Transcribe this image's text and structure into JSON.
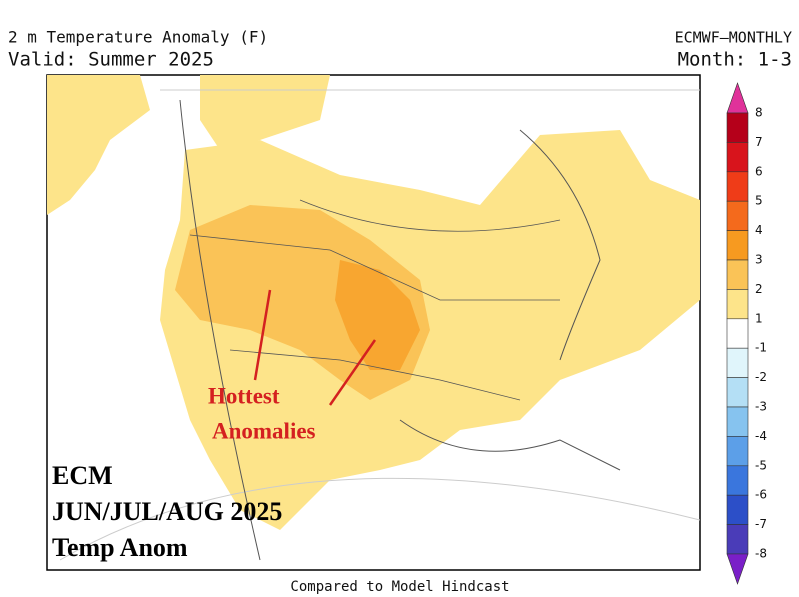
{
  "header": {
    "title": "2 m Temperature Anomaly (F)",
    "valid": "Valid: Summer 2025",
    "model": "ECMWF—MONTHLY",
    "month": "Month: 1-3"
  },
  "annotations": {
    "hottest_line1": "Hottest",
    "hottest_line2": "Anomalies",
    "ecm": "ECM",
    "period": "JUN/JUL/AUG 2025",
    "temp": "Temp Anom"
  },
  "footer": "Compared to Model Hindcast",
  "colorbar": {
    "labels": [
      8,
      7,
      6,
      5,
      4,
      3,
      2,
      1,
      -1,
      -2,
      -3,
      -4,
      -5,
      -6,
      -7,
      -8
    ],
    "colors": [
      "#e0329a",
      "#b5001a",
      "#d8141c",
      "#ef3c18",
      "#f46a1c",
      "#f79a20",
      "#fac357",
      "#fde48a",
      "#ffffff",
      "#e0f5fb",
      "#b4dff5",
      "#86c3ef",
      "#5c9fe8",
      "#3a76dd",
      "#2c4fc8",
      "#4a3cb8",
      "#7a1fc8"
    ]
  }
}
